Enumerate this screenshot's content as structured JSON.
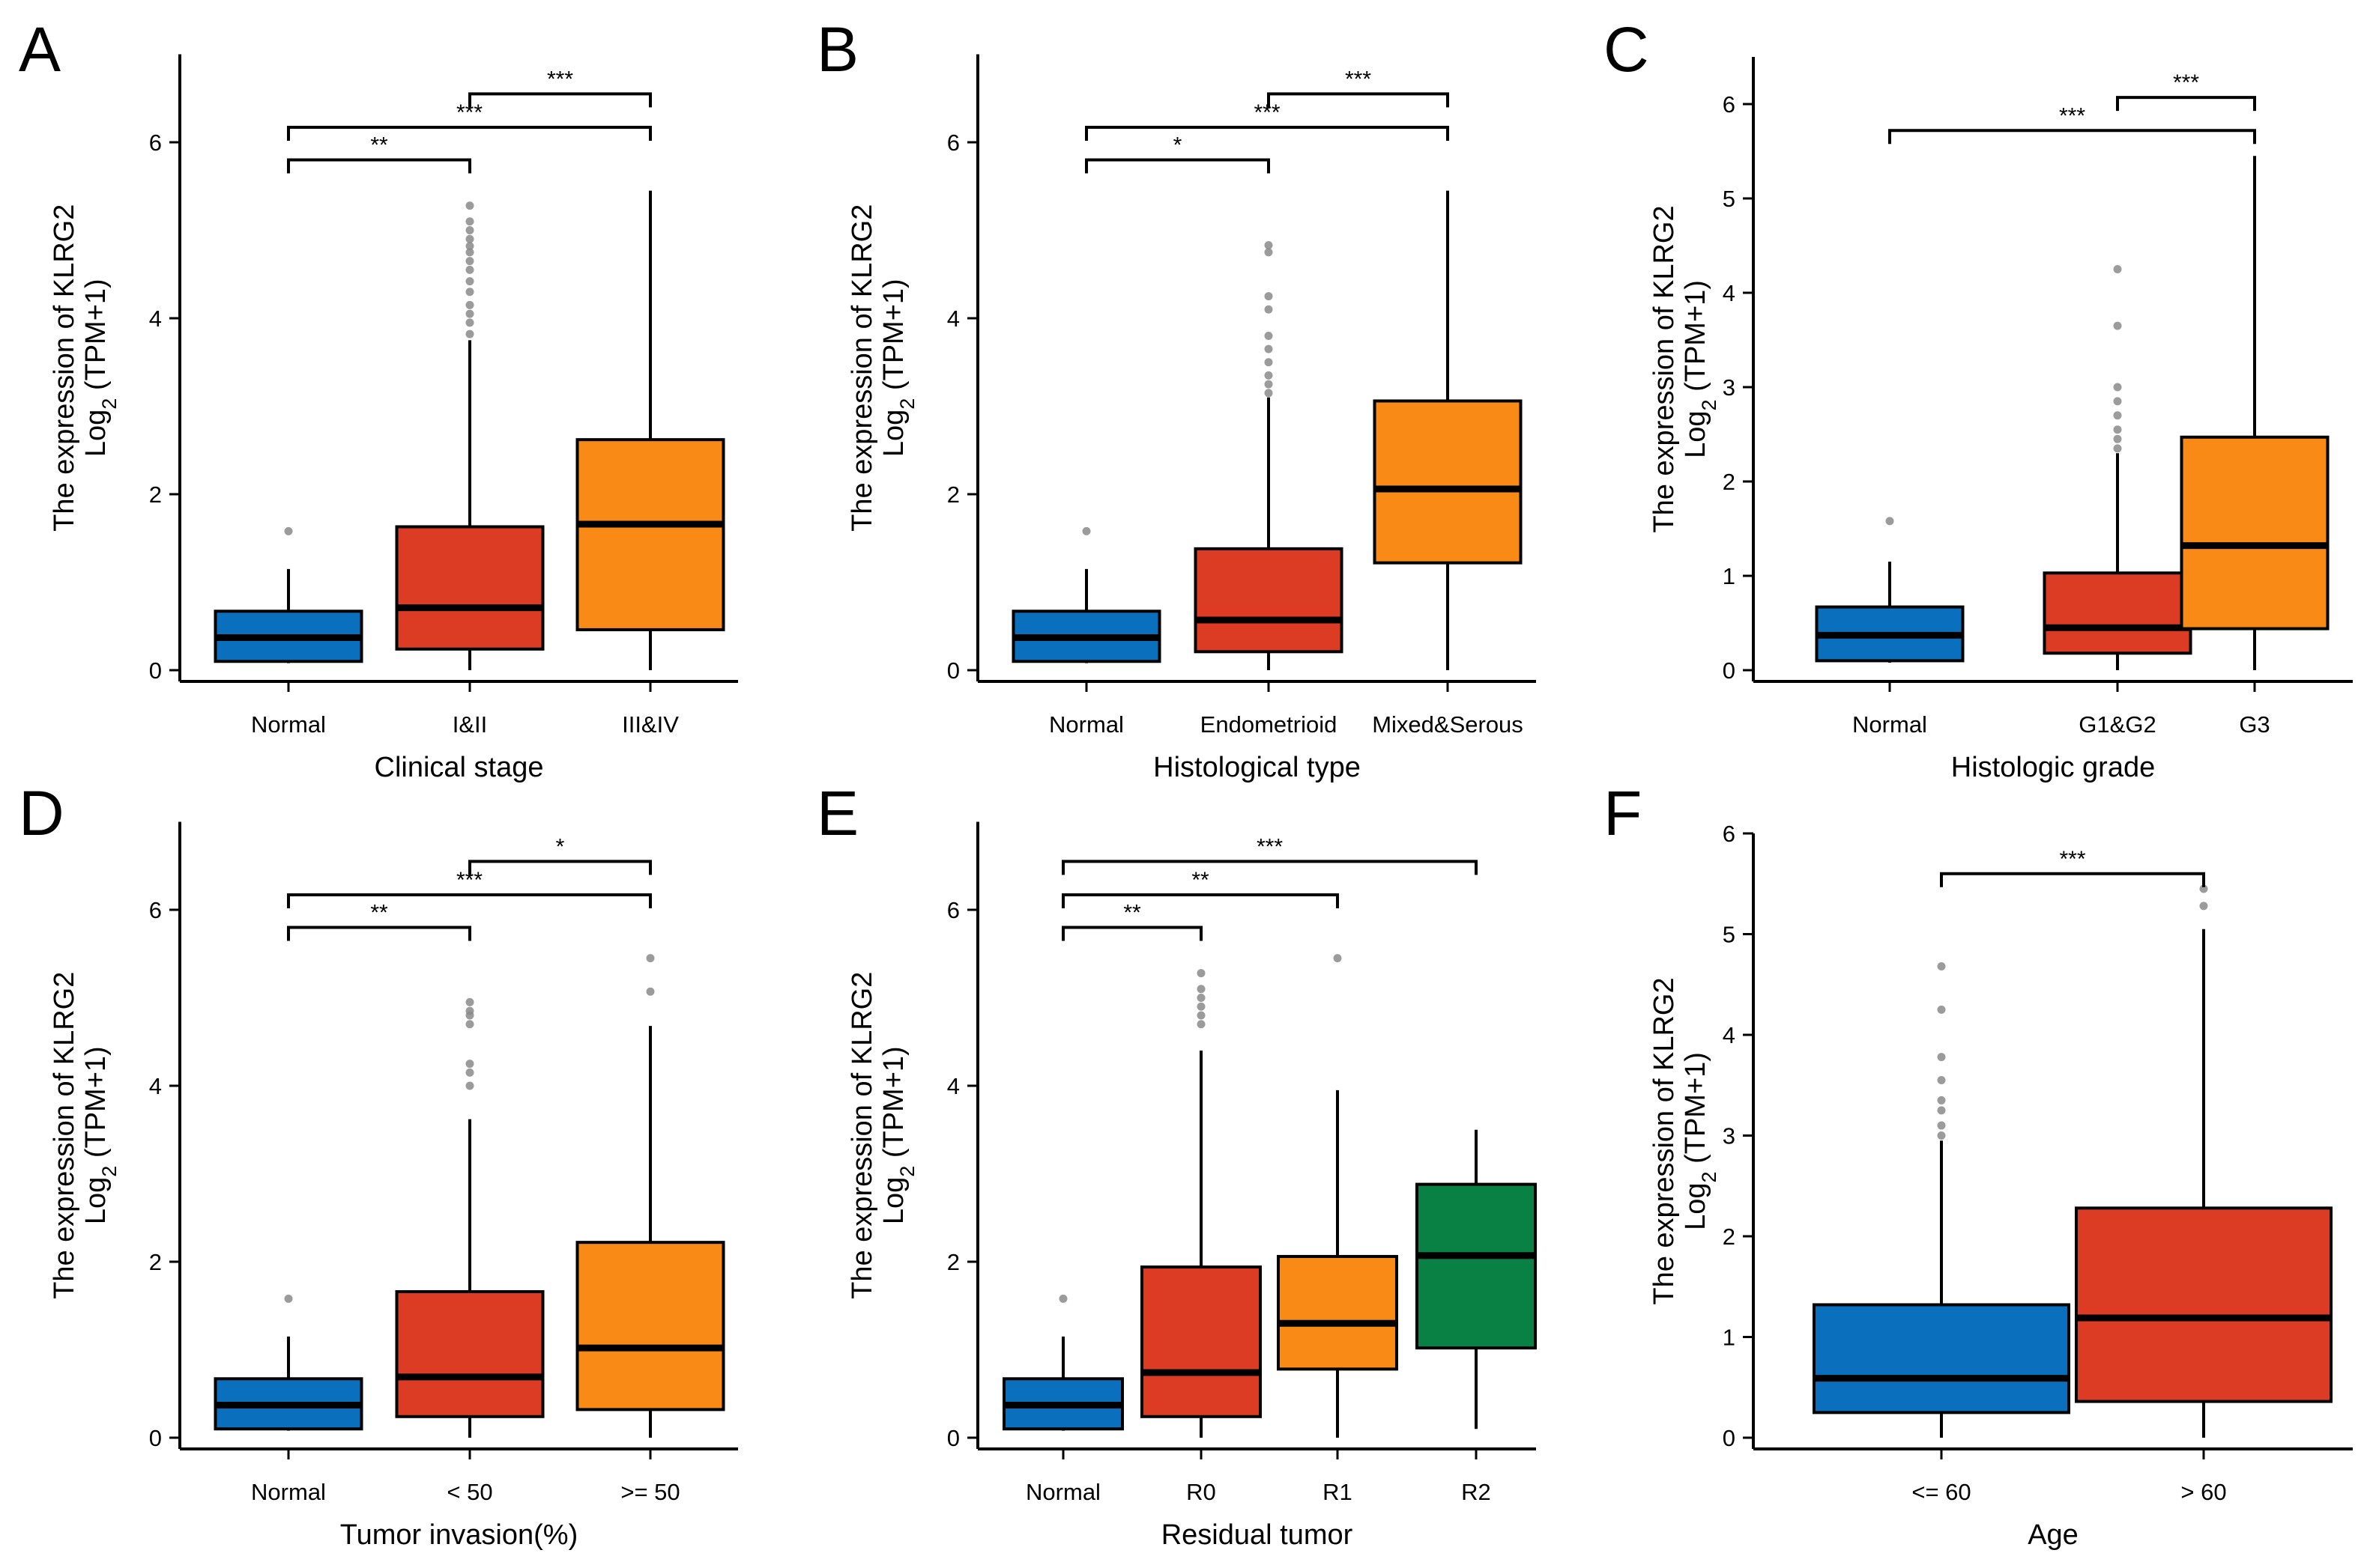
{
  "figure": {
    "ylabel_line1": "The expression of KLRG2",
    "ylabel_line2_prefix": "Log",
    "ylabel_line2_sub": "2",
    "ylabel_line2_suffix": " (TPM+1)"
  },
  "colors": {
    "blue": "#0a6fbd",
    "red": "#dc3c24",
    "orange": "#f98a15",
    "green": "#098145",
    "outlier": "#8a8a8a"
  },
  "chart_data": [
    {
      "type": "box",
      "letter": "A",
      "xlabel": "Clinical stage",
      "ylim": [
        0,
        7
      ],
      "yticks": [
        0,
        2,
        4,
        6
      ],
      "categories": [
        "Normal",
        "I&II",
        "III&IV"
      ],
      "colors": [
        "blue",
        "red",
        "orange"
      ],
      "boxes": [
        {
          "min": 0.08,
          "q1": 0.1,
          "median": 0.37,
          "q3": 0.67,
          "max": 1.15,
          "outliers": [
            1.58
          ]
        },
        {
          "min": 0.0,
          "q1": 0.24,
          "median": 0.71,
          "q3": 1.63,
          "max": 3.75,
          "outliers": [
            3.82,
            3.95,
            4.05,
            4.15,
            4.3,
            4.42,
            4.55,
            4.65,
            4.75,
            4.82,
            4.9,
            5.0,
            5.1,
            5.28
          ]
        },
        {
          "min": 0.0,
          "q1": 0.46,
          "median": 1.66,
          "q3": 2.62,
          "max": 5.45,
          "outliers": []
        }
      ],
      "brackets": [
        {
          "from": 0,
          "to": 1,
          "y": 5.8,
          "label": "**"
        },
        {
          "from": 0,
          "to": 2,
          "y": 6.17,
          "label": "***"
        },
        {
          "from": 1,
          "to": 2,
          "y": 6.55,
          "label": "***"
        }
      ]
    },
    {
      "type": "box",
      "letter": "B",
      "xlabel": "Histological type",
      "ylim": [
        0,
        7
      ],
      "yticks": [
        0,
        2,
        4,
        6
      ],
      "categories": [
        "Normal",
        "Endometrioid",
        "Mixed&Serous"
      ],
      "colors": [
        "blue",
        "red",
        "orange"
      ],
      "boxes": [
        {
          "min": 0.08,
          "q1": 0.1,
          "median": 0.37,
          "q3": 0.67,
          "max": 1.15,
          "outliers": [
            1.58
          ]
        },
        {
          "min": 0.0,
          "q1": 0.21,
          "median": 0.57,
          "q3": 1.38,
          "max": 3.1,
          "outliers": [
            3.15,
            3.25,
            3.35,
            3.5,
            3.65,
            3.8,
            4.1,
            4.25,
            4.75,
            4.83
          ]
        },
        {
          "min": 0.0,
          "q1": 1.22,
          "median": 2.06,
          "q3": 3.06,
          "max": 5.45,
          "outliers": []
        }
      ],
      "brackets": [
        {
          "from": 0,
          "to": 1,
          "y": 5.8,
          "label": "*"
        },
        {
          "from": 0,
          "to": 2,
          "y": 6.17,
          "label": "***"
        },
        {
          "from": 1,
          "to": 2,
          "y": 6.55,
          "label": "***"
        }
      ]
    },
    {
      "type": "box",
      "letter": "C",
      "xlabel": "Histologic grade",
      "ylim": [
        0,
        6.5
      ],
      "yticks": [
        0,
        1,
        2,
        3,
        4,
        5,
        6
      ],
      "categories": [
        "Normal",
        "G1&G2",
        "G3"
      ],
      "colors": [
        "blue",
        "red",
        "orange"
      ],
      "boxes": [
        {
          "min": 0.08,
          "q1": 0.1,
          "median": 0.37,
          "q3": 0.67,
          "max": 1.15,
          "outliers": [
            1.58
          ]
        },
        {
          "min": 0.0,
          "q1": 0.18,
          "median": 0.45,
          "q3": 1.03,
          "max": 2.3,
          "outliers": [
            2.35,
            2.45,
            2.55,
            2.7,
            2.85,
            3.0,
            3.65,
            4.25
          ]
        },
        {
          "min": 0.0,
          "q1": 0.44,
          "median": 1.32,
          "q3": 2.47,
          "max": 5.45,
          "outliers": []
        }
      ],
      "brackets": [
        {
          "from": 0,
          "to": 2,
          "y": 5.72,
          "label": "***"
        },
        {
          "from": 1,
          "to": 2,
          "y": 6.07,
          "label": "***"
        }
      ]
    },
    {
      "type": "box",
      "letter": "D",
      "xlabel": "Tumor invasion(%)",
      "ylim": [
        0,
        7
      ],
      "yticks": [
        0,
        2,
        4,
        6
      ],
      "categories": [
        "Normal",
        "< 50",
        ">= 50"
      ],
      "colors": [
        "blue",
        "red",
        "orange"
      ],
      "boxes": [
        {
          "min": 0.08,
          "q1": 0.1,
          "median": 0.37,
          "q3": 0.67,
          "max": 1.15,
          "outliers": [
            1.58
          ]
        },
        {
          "min": 0.0,
          "q1": 0.24,
          "median": 0.69,
          "q3": 1.66,
          "max": 3.62,
          "outliers": [
            4.0,
            4.15,
            4.25,
            4.7,
            4.8,
            4.85,
            4.95
          ]
        },
        {
          "min": 0.0,
          "q1": 0.32,
          "median": 1.02,
          "q3": 2.22,
          "max": 4.68,
          "outliers": [
            5.07,
            5.45
          ]
        }
      ],
      "brackets": [
        {
          "from": 0,
          "to": 1,
          "y": 5.8,
          "label": "**"
        },
        {
          "from": 0,
          "to": 2,
          "y": 6.17,
          "label": "***"
        },
        {
          "from": 1,
          "to": 2,
          "y": 6.55,
          "label": "*"
        }
      ]
    },
    {
      "type": "box",
      "letter": "E",
      "xlabel": "Residual tumor",
      "ylim": [
        0,
        7
      ],
      "yticks": [
        0,
        2,
        4,
        6
      ],
      "categories": [
        "Normal",
        "R0",
        "R1",
        "R2"
      ],
      "colors": [
        "blue",
        "red",
        "orange",
        "green"
      ],
      "boxes": [
        {
          "min": 0.08,
          "q1": 0.1,
          "median": 0.37,
          "q3": 0.67,
          "max": 1.15,
          "outliers": [
            1.58
          ]
        },
        {
          "min": 0.0,
          "q1": 0.24,
          "median": 0.74,
          "q3": 1.94,
          "max": 4.4,
          "outliers": [
            4.7,
            4.8,
            4.9,
            5.0,
            5.1,
            5.28
          ]
        },
        {
          "min": 0.0,
          "q1": 0.78,
          "median": 1.3,
          "q3": 2.06,
          "max": 3.95,
          "outliers": [
            5.45
          ]
        },
        {
          "min": 0.1,
          "q1": 1.02,
          "median": 2.07,
          "q3": 2.88,
          "max": 3.5,
          "outliers": []
        }
      ],
      "brackets": [
        {
          "from": 0,
          "to": 1,
          "y": 5.8,
          "label": "**"
        },
        {
          "from": 0,
          "to": 2,
          "y": 6.17,
          "label": "**"
        },
        {
          "from": 0,
          "to": 3,
          "y": 6.55,
          "label": "***"
        }
      ]
    },
    {
      "type": "box",
      "letter": "F",
      "xlabel": "Age",
      "ylim": [
        0,
        6
      ],
      "yticks": [
        0,
        1,
        2,
        3,
        4,
        5,
        6
      ],
      "categories": [
        "<= 60",
        "> 60"
      ],
      "colors": [
        "blue",
        "red"
      ],
      "boxes": [
        {
          "min": 0.0,
          "q1": 0.25,
          "median": 0.59,
          "q3": 1.32,
          "max": 2.95,
          "outliers": [
            3.0,
            3.1,
            3.25,
            3.35,
            3.55,
            3.78,
            4.25,
            4.68
          ]
        },
        {
          "min": 0.0,
          "q1": 0.36,
          "median": 1.19,
          "q3": 2.28,
          "max": 5.05,
          "outliers": [
            5.28,
            5.45
          ]
        }
      ],
      "brackets": [
        {
          "from": 0,
          "to": 1,
          "y": 5.6,
          "label": "***"
        }
      ]
    }
  ]
}
